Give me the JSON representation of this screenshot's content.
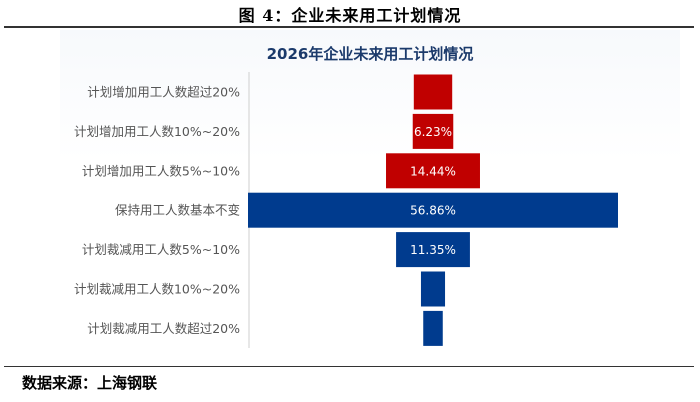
{
  "figure_title": "图 4：企业未来用工计划情况",
  "source": "数据来源：上海钢联",
  "colors": {
    "increase": "#c00000",
    "steady": "#003b8e",
    "decrease": "#003b8e"
  },
  "chart_data": {
    "type": "bar",
    "orientation": "horizontal-centered",
    "title": "2026年企业未来用工计划情况",
    "categories": [
      "计划增加用工人数超过20%",
      "计划增加用工人数10%~20%",
      "计划增加用工人数5%~10%",
      "保持用工人数基本不变",
      "计划裁减用工人数5%~10%",
      "计划裁减用工人数10%~20%",
      "计划裁减用工人数超过20%"
    ],
    "values": [
      5.9,
      6.23,
      14.44,
      56.86,
      11.35,
      3.7,
      3.0
    ],
    "labels": [
      "",
      "6.23%",
      "14.44%",
      "56.86%",
      "11.35%",
      "",
      ""
    ],
    "groups": [
      "increase",
      "increase",
      "increase",
      "steady",
      "decrease",
      "decrease",
      "decrease"
    ],
    "xlim": [
      0,
      60
    ],
    "grid": false,
    "legend": "none"
  }
}
